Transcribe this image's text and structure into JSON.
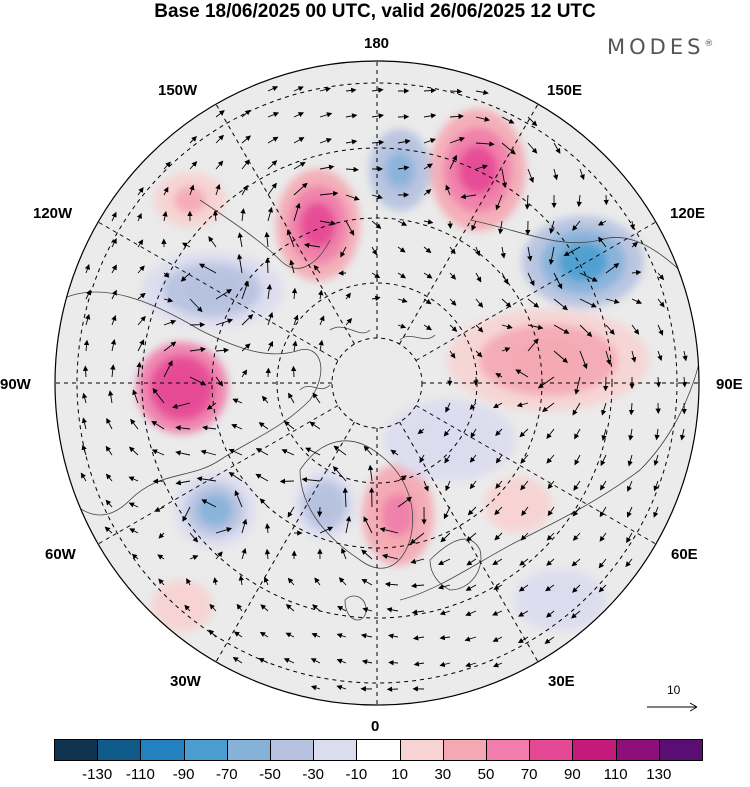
{
  "title": "Base 18/06/2025 00 UTC, valid 26/06/2025 12 UTC",
  "brand": "MODES",
  "brand_mark": "®",
  "longitude_labels": {
    "top": "180",
    "top_right": "150E",
    "right_upper": "120E",
    "right": "90E",
    "right_lower": "60E",
    "bottom_right": "30E",
    "bottom": "0",
    "bottom_left": "30W",
    "left_lower": "60W",
    "left": "90W",
    "left_upper": "120W",
    "top_left": "150W"
  },
  "reference_vector": {
    "label": "10"
  },
  "colorbar": {
    "colors": [
      "#10344f",
      "#115b8a",
      "#2281be",
      "#4b9dcf",
      "#86b2da",
      "#b6c2e0",
      "#dcdcef",
      "#ffffff",
      "#f7d3d3",
      "#f4a8b2",
      "#f07dab",
      "#e54895",
      "#c31a7c",
      "#8e0f7a",
      "#5a0d72"
    ],
    "ticks": [
      "-130",
      "-110",
      "-90",
      "-70",
      "-50",
      "-30",
      "-10",
      "10",
      "30",
      "50",
      "70",
      "90",
      "110",
      "130"
    ]
  },
  "anomaly_centers": [
    {
      "sign": "positive",
      "value": 85
    },
    {
      "sign": "positive",
      "value": 75
    },
    {
      "sign": "positive",
      "value": 90
    },
    {
      "sign": "positive",
      "value": 45
    },
    {
      "sign": "positive",
      "value": 55
    },
    {
      "sign": "positive",
      "value": 35
    },
    {
      "sign": "positive",
      "value": 25
    },
    {
      "sign": "positive",
      "value": 30
    },
    {
      "sign": "negative",
      "value": -70
    },
    {
      "sign": "negative",
      "value": -45
    },
    {
      "sign": "negative",
      "value": -50
    },
    {
      "sign": "negative",
      "value": -40
    },
    {
      "sign": "negative",
      "value": -55
    },
    {
      "sign": "negative",
      "value": -25
    },
    {
      "sign": "negative",
      "value": -20
    }
  ]
}
